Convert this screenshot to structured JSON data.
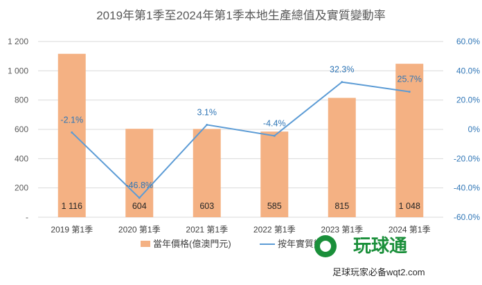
{
  "chart_data": {
    "type": "bar",
    "title": "2019年第1季至2024年第1季本地生產總值及實質變動率",
    "categories": [
      "2019 第1季",
      "2020 第1季",
      "2021 第1季",
      "2022 第1季",
      "2023 第1季",
      "2024 第1季"
    ],
    "series": [
      {
        "name": "當年價格(億澳門元)",
        "type": "bar",
        "axis": "left",
        "values": [
          1116,
          604,
          603,
          585,
          815,
          1048
        ],
        "labels": [
          "1 116",
          "604",
          "603",
          "585",
          "815",
          "1 048"
        ],
        "color": "#f4b183"
      },
      {
        "name": "按年實質變動",
        "type": "line",
        "axis": "right",
        "values": [
          -2.1,
          -46.8,
          3.1,
          -4.4,
          32.3,
          25.7
        ],
        "labels": [
          "-2.1%",
          "-46.8%",
          "3.1%",
          "-4.4%",
          "32.3%",
          "25.7%"
        ],
        "color": "#5b9bd5"
      }
    ],
    "y_left": {
      "ylim": [
        0,
        1200
      ],
      "ticks": [
        0,
        200,
        400,
        600,
        800,
        1000,
        1200
      ],
      "tick_labels": [
        "-",
        "200",
        "400",
        "600",
        "800",
        "1 000",
        "1 200"
      ]
    },
    "y_right": {
      "ylim": [
        -60,
        60
      ],
      "ticks": [
        -60,
        -40,
        -20,
        0,
        20,
        40,
        60
      ],
      "tick_labels": [
        "-60.0%",
        "-40.0%",
        "-20.0%",
        "0%",
        "20.0%",
        "40.0%",
        "60.0%"
      ]
    },
    "grid": true,
    "legend": "bottom"
  },
  "watermark": {
    "brand": "玩球通",
    "tagline": "足球玩家必备wqt2.com"
  }
}
